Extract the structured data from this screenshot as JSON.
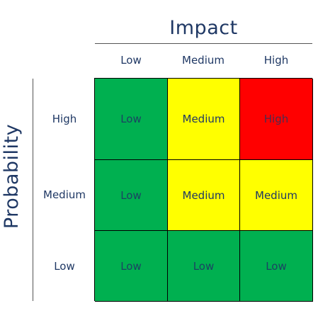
{
  "axes": {
    "impact_title": "Impact",
    "probability_title": "Probability",
    "columns": [
      "Low",
      "Medium",
      "High"
    ],
    "rows": [
      "High",
      "Medium",
      "Low"
    ]
  },
  "matrix": [
    [
      {
        "label": "Low",
        "color": "#00b050"
      },
      {
        "label": "Medium",
        "color": "#ffff00"
      },
      {
        "label": "High",
        "color": "#ff0000"
      }
    ],
    [
      {
        "label": "Low",
        "color": "#00b050"
      },
      {
        "label": "Medium",
        "color": "#ffff00"
      },
      {
        "label": "Medium",
        "color": "#ffff00"
      }
    ],
    [
      {
        "label": "Low",
        "color": "#00b050"
      },
      {
        "label": "Low",
        "color": "#00b050"
      },
      {
        "label": "Low",
        "color": "#00b050"
      }
    ]
  ]
}
